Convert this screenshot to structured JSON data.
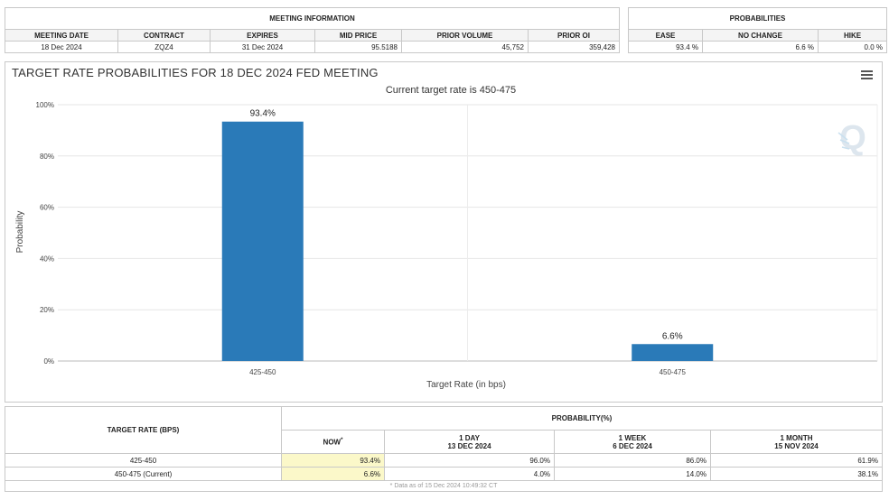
{
  "meeting_info": {
    "section_title": "MEETING INFORMATION",
    "headers": [
      "MEETING DATE",
      "CONTRACT",
      "EXPIRES",
      "MID PRICE",
      "PRIOR VOLUME",
      "PRIOR OI"
    ],
    "values": [
      "18 Dec 2024",
      "ZQZ4",
      "31 Dec 2024",
      "95.5188",
      "45,752",
      "359,428"
    ]
  },
  "probabilities": {
    "section_title": "PROBABILITIES",
    "headers": [
      "EASE",
      "NO CHANGE",
      "HIKE"
    ],
    "values": [
      "93.4 %",
      "6.6 %",
      "0.0 %"
    ]
  },
  "colors": {
    "bar": "#2a7ab8",
    "highlight": "#fbf8c9",
    "border": "#c8c8c8"
  },
  "chart_data": {
    "type": "bar",
    "title": "TARGET RATE PROBABILITIES FOR 18 DEC 2024 FED MEETING",
    "subtitle": "Current target rate is 450-475",
    "xlabel": "Target Rate (in bps)",
    "ylabel": "Probability",
    "categories": [
      "425-450",
      "450-475"
    ],
    "values": [
      93.4,
      6.6
    ],
    "data_labels": [
      "93.4%",
      "6.6%"
    ],
    "ylim": [
      0,
      100
    ],
    "yticks": [
      "0%",
      "20%",
      "40%",
      "60%",
      "80%",
      "100%"
    ],
    "grid": true,
    "legend": "none"
  },
  "chart_menu_icon": "hamburger-menu-icon",
  "watermark_icon": "q-logo-icon",
  "bottom_table": {
    "target_rate_header": "TARGET RATE (BPS)",
    "probability_header": "PROBABILITY(%)",
    "col_now": "NOW",
    "col_now_mark": "*",
    "col_1day": [
      "1 DAY",
      "13 DEC 2024"
    ],
    "col_1week": [
      "1 WEEK",
      "6 DEC 2024"
    ],
    "col_1month": [
      "1 MONTH",
      "15 NOV 2024"
    ],
    "rows": [
      {
        "rate": "425-450",
        "now": "93.4%",
        "day": "96.0%",
        "week": "86.0%",
        "month": "61.9%"
      },
      {
        "rate": "450-475 (Current)",
        "now": "6.6%",
        "day": "4.0%",
        "week": "14.0%",
        "month": "38.1%"
      }
    ],
    "footnote": "* Data as of 15 Dec 2024 10:49:32 CT"
  }
}
